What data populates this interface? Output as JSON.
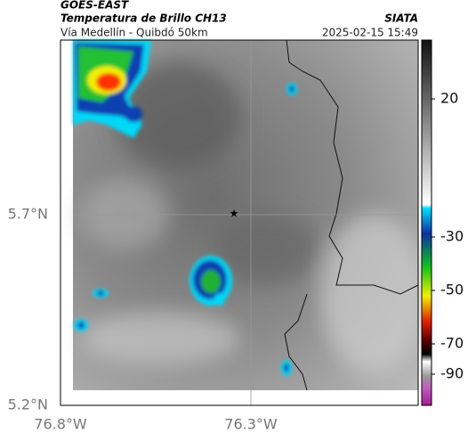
{
  "header": {
    "source": "GOES-EAST",
    "title": "Temperatura de Brillo CH13",
    "organization": "SIATA",
    "subtitle": "Vía Medellín - Quibdó 50km",
    "timestamp": "2025-02-15 15:49"
  },
  "axes": {
    "y_labels": [
      "5.7°N",
      "5.2°N"
    ],
    "x_labels": [
      "76.8°W",
      "76.3°W"
    ]
  },
  "colorbar": {
    "ticks": [
      20,
      -30,
      -50,
      -70,
      -90
    ]
  }
}
